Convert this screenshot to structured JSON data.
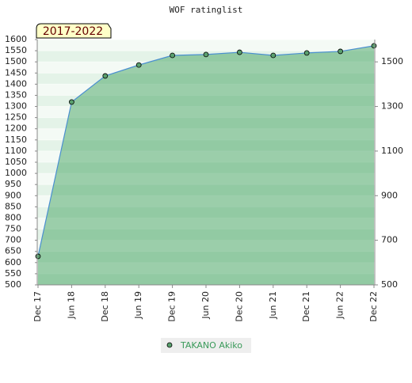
{
  "chart_data": {
    "type": "area",
    "title": "WOF ratinglist",
    "badge": "2017-2022",
    "categories": [
      "Dec 17",
      "Jun 18",
      "Dec 18",
      "Jun 19",
      "Dec 19",
      "Jun 20",
      "Dec 20",
      "Jun 21",
      "Dec 21",
      "Jun 22",
      "Dec 22"
    ],
    "series": [
      {
        "name": "TAKANO Akiko",
        "color": "#5aa06e",
        "values": [
          628,
          1320,
          1437,
          1486,
          1529,
          1533,
          1543,
          1529,
          1540,
          1547,
          1572
        ]
      }
    ],
    "ylim": [
      500,
      1600
    ],
    "yticks": [
      500,
      550,
      600,
      650,
      700,
      750,
      800,
      850,
      900,
      950,
      1000,
      1050,
      1100,
      1150,
      1200,
      1250,
      1300,
      1350,
      1400,
      1450,
      1500,
      1550,
      1600
    ],
    "y2lim": [
      500,
      1600
    ],
    "y2ticks": [
      500,
      700,
      900,
      1100,
      1300,
      1500
    ]
  }
}
